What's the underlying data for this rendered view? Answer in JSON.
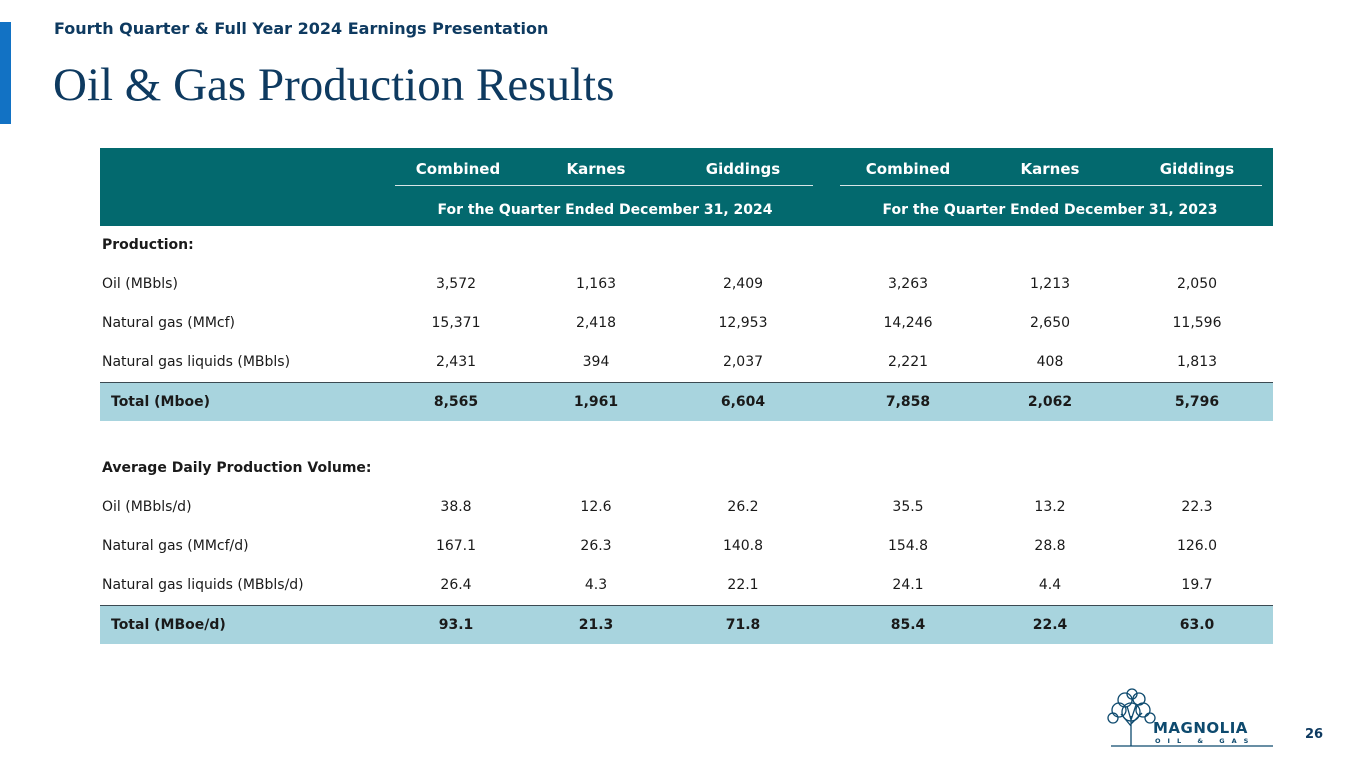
{
  "header": {
    "subtitle": "Fourth Quarter & Full Year 2024 Earnings Presentation",
    "title": "Oil & Gas Production Results"
  },
  "table": {
    "columns": [
      "Combined",
      "Karnes",
      "Giddings",
      "Combined",
      "Karnes",
      "Giddings"
    ],
    "periods": [
      "For the Quarter Ended December 31, 2024",
      "For the Quarter Ended December 31, 2023"
    ],
    "production": {
      "heading": "Production:",
      "rows": [
        {
          "label": "Oil (MBbls)",
          "values": [
            "3,572",
            "1,163",
            "2,409",
            "3,263",
            "1,213",
            "2,050"
          ]
        },
        {
          "label": "Natural gas (MMcf)",
          "values": [
            "15,371",
            "2,418",
            "12,953",
            "14,246",
            "2,650",
            "11,596"
          ]
        },
        {
          "label": "Natural gas liquids (MBbls)",
          "values": [
            "2,431",
            "394",
            "2,037",
            "2,221",
            "408",
            "1,813"
          ]
        }
      ],
      "total": {
        "label": "Total (Mboe)",
        "values": [
          "8,565",
          "1,961",
          "6,604",
          "7,858",
          "2,062",
          "5,796"
        ]
      }
    },
    "daily": {
      "heading": "Average Daily Production Volume:",
      "rows": [
        {
          "label": "Oil (MBbls/d)",
          "values": [
            "38.8",
            "12.6",
            "26.2",
            "35.5",
            "13.2",
            "22.3"
          ]
        },
        {
          "label": "Natural gas (MMcf/d)",
          "values": [
            "167.1",
            "26.3",
            "140.8",
            "154.8",
            "28.8",
            "126.0"
          ]
        },
        {
          "label": "Natural gas liquids (MBbls/d)",
          "values": [
            "26.4",
            "4.3",
            "22.1",
            "24.1",
            "4.4",
            "19.7"
          ]
        }
      ],
      "total": {
        "label": "Total (MBoe/d)",
        "values": [
          "93.1",
          "21.3",
          "71.8",
          "85.4",
          "22.4",
          "63.0"
        ]
      }
    }
  },
  "footer": {
    "page_number": "26",
    "logo_name": "MAGNOLIA",
    "logo_sub": "OIL & GAS",
    "logo_icon": "magnolia-tree-icon"
  },
  "colors": {
    "accent": "#1272c4",
    "title": "#0e3a60",
    "table_header": "#03696e",
    "total_row": "#a8d4de"
  }
}
